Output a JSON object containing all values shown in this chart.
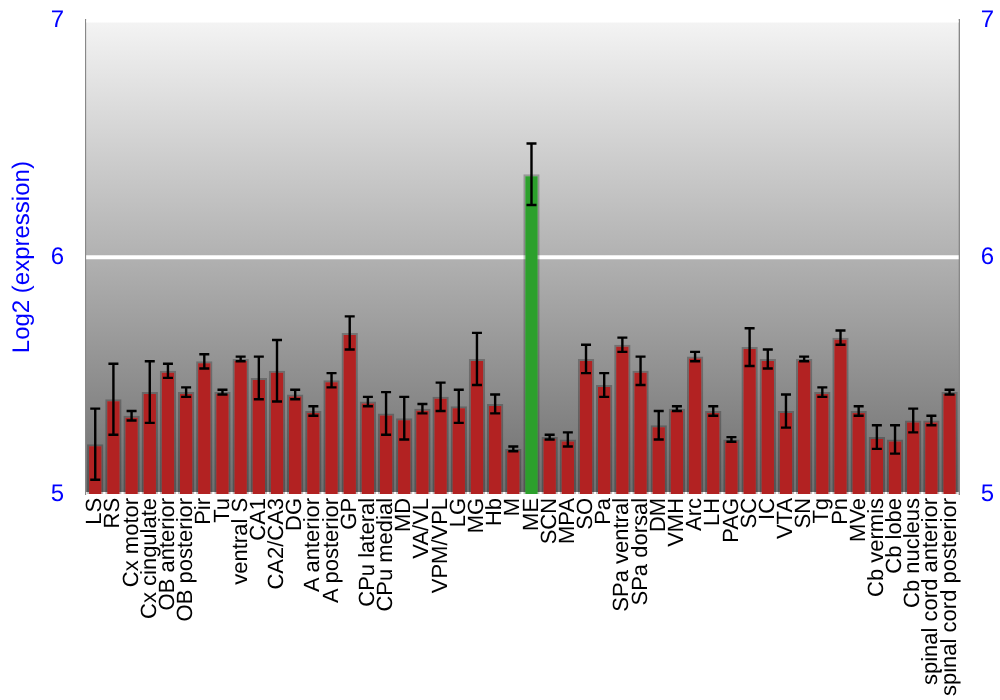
{
  "chart_data": {
    "type": "bar",
    "ylabel": "Log2 (expression)",
    "categories": [
      "LS",
      "RS",
      "Cx motor",
      "Cx cingulate",
      "OB anterior",
      "OB posterior",
      "Pir",
      "Tu",
      "ventral S",
      "CA1",
      "CA2/CA3",
      "DG",
      "A anterior",
      "A posterior",
      "GP",
      "CPu lateral",
      "CPu medial",
      "MD",
      "VA/VL",
      "VPM/VPL",
      "LG",
      "MG",
      "Hb",
      "M",
      "ME",
      "SCN",
      "MPA",
      "SO",
      "Pa",
      "SPa ventral",
      "SPa dorsal",
      "DM",
      "VMH",
      "Arc",
      "LH",
      "PAG",
      "SC",
      "IC",
      "VTA",
      "SN",
      "Tg",
      "Pn",
      "MVe",
      "Cb vermis",
      "Cb lobe",
      "Cb nucleus",
      "spinal cord anterior",
      "spinal cord posterior"
    ],
    "values": [
      5.21,
      5.4,
      5.33,
      5.43,
      5.52,
      5.43,
      5.56,
      5.43,
      5.57,
      5.49,
      5.52,
      5.42,
      5.35,
      5.48,
      5.68,
      5.39,
      5.34,
      5.32,
      5.36,
      5.41,
      5.37,
      5.57,
      5.38,
      5.19,
      6.35,
      5.24,
      5.23,
      5.57,
      5.46,
      5.63,
      5.52,
      5.29,
      5.36,
      5.58,
      5.35,
      5.23,
      5.62,
      5.57,
      5.35,
      5.57,
      5.43,
      5.66,
      5.35,
      5.24,
      5.23,
      5.31,
      5.31,
      5.43
    ],
    "errors": [
      0.15,
      0.15,
      0.02,
      0.13,
      0.03,
      0.02,
      0.03,
      0.01,
      0.01,
      0.09,
      0.13,
      0.02,
      0.02,
      0.03,
      0.07,
      0.02,
      0.09,
      0.09,
      0.02,
      0.06,
      0.07,
      0.11,
      0.04,
      0.01,
      0.13,
      0.01,
      0.03,
      0.06,
      0.05,
      0.03,
      0.06,
      0.06,
      0.01,
      0.02,
      0.02,
      0.01,
      0.08,
      0.04,
      0.07,
      0.01,
      0.02,
      0.03,
      0.02,
      0.05,
      0.06,
      0.05,
      0.02,
      0.01
    ],
    "colors": [
      "#b22222",
      "#b22222",
      "#b22222",
      "#b22222",
      "#b22222",
      "#b22222",
      "#b22222",
      "#b22222",
      "#b22222",
      "#b22222",
      "#b22222",
      "#b22222",
      "#b22222",
      "#b22222",
      "#b22222",
      "#b22222",
      "#b22222",
      "#b22222",
      "#b22222",
      "#b22222",
      "#b22222",
      "#b22222",
      "#b22222",
      "#b22222",
      "#2ca02c",
      "#b22222",
      "#b22222",
      "#b22222",
      "#b22222",
      "#b22222",
      "#b22222",
      "#b22222",
      "#b22222",
      "#b22222",
      "#b22222",
      "#b22222",
      "#b22222",
      "#b22222",
      "#b22222",
      "#b22222",
      "#b22222",
      "#b22222",
      "#b22222",
      "#b22222",
      "#b22222",
      "#b22222",
      "#b22222",
      "#b22222"
    ],
    "ylim": [
      5,
      7
    ],
    "yticks": [
      5,
      6,
      7
    ],
    "y2lim": [
      5,
      7
    ],
    "y2ticks": [
      5,
      6,
      7
    ],
    "grid": "y",
    "legend": false
  }
}
